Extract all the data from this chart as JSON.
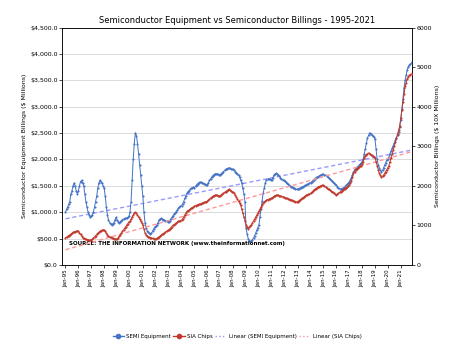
{
  "title": "Semiconductor Equipment vs Semiconductor Billings - 1995-2021",
  "ylabel_left": "Semiconductor Equipment Billings ($ Millions)",
  "ylabel_right": "Semiconductor Billings ($ 10X Millions)",
  "source_text": "SOURCE: THE INFORMATION NETWORK (www.theinformationnet.com)",
  "semi_equip_color": "#4472C4",
  "sia_chips_color": "#C0392B",
  "linear_equip_color": "#9999FF",
  "linear_sia_color": "#FF9999",
  "background_color": "#FFFFFF",
  "semi_eq_annual": [
    [
      1000,
      1050,
      1100,
      1150,
      1200,
      1350,
      1400,
      1500,
      1550,
      1500,
      1400,
      1350
    ],
    [
      1400,
      1500,
      1580,
      1600,
      1550,
      1500,
      1350,
      1200,
      1100,
      1000,
      950,
      900
    ],
    [
      920,
      950,
      1000,
      1100,
      1200,
      1300,
      1450,
      1550,
      1600,
      1580,
      1550,
      1500
    ],
    [
      1450,
      1300,
      1100,
      950,
      850,
      800,
      780,
      760,
      780,
      800,
      850,
      900
    ],
    [
      850,
      820,
      800,
      820,
      840,
      860,
      870,
      880,
      880,
      890,
      900,
      920
    ],
    [
      1000,
      1200,
      1600,
      2000,
      2300,
      2500,
      2450,
      2300,
      2100,
      1900,
      1700,
      1500
    ],
    [
      1300,
      1000,
      800,
      700,
      650,
      620,
      600,
      590,
      600,
      640,
      680,
      720
    ],
    [
      730,
      760,
      800,
      850,
      870,
      880,
      870,
      860,
      850,
      840,
      830,
      820
    ],
    [
      820,
      840,
      870,
      900,
      930,
      960,
      990,
      1010,
      1040,
      1070,
      1090,
      1110
    ],
    [
      1120,
      1160,
      1200,
      1260,
      1310,
      1360,
      1390,
      1410,
      1430,
      1450,
      1460,
      1470
    ],
    [
      1460,
      1490,
      1520,
      1540,
      1560,
      1570,
      1565,
      1555,
      1545,
      1535,
      1525,
      1515
    ],
    [
      1520,
      1560,
      1600,
      1630,
      1660,
      1690,
      1710,
      1725,
      1730,
      1725,
      1715,
      1705
    ],
    [
      1710,
      1730,
      1750,
      1770,
      1790,
      1810,
      1820,
      1830,
      1835,
      1830,
      1820,
      1810
    ],
    [
      1810,
      1790,
      1770,
      1750,
      1730,
      1710,
      1660,
      1610,
      1550,
      1450,
      1350,
      1200
    ],
    [
      700,
      590,
      500,
      455,
      445,
      450,
      480,
      510,
      555,
      605,
      655,
      705
    ],
    [
      760,
      910,
      1060,
      1220,
      1370,
      1460,
      1560,
      1610,
      1625,
      1635,
      1625,
      1605
    ],
    [
      1605,
      1655,
      1705,
      1725,
      1735,
      1725,
      1705,
      1685,
      1655,
      1635,
      1615,
      1605
    ],
    [
      1585,
      1565,
      1545,
      1525,
      1505,
      1495,
      1485,
      1475,
      1465,
      1455,
      1445,
      1435
    ],
    [
      1435,
      1445,
      1455,
      1465,
      1475,
      1485,
      1495,
      1505,
      1515,
      1525,
      1535,
      1545
    ],
    [
      1555,
      1575,
      1595,
      1615,
      1635,
      1655,
      1665,
      1675,
      1685,
      1695,
      1705,
      1715
    ],
    [
      1715,
      1705,
      1695,
      1685,
      1665,
      1645,
      1625,
      1605,
      1585,
      1565,
      1545,
      1525
    ],
    [
      1505,
      1485,
      1465,
      1445,
      1435,
      1445,
      1455,
      1465,
      1485,
      1505,
      1525,
      1545
    ],
    [
      1565,
      1605,
      1655,
      1705,
      1755,
      1805,
      1825,
      1845,
      1865,
      1885,
      1905,
      1925
    ],
    [
      1955,
      2005,
      2105,
      2205,
      2305,
      2405,
      2455,
      2505,
      2485,
      2465,
      2445,
      2425
    ],
    [
      2380,
      2200,
      2000,
      1900,
      1840,
      1790,
      1770,
      1790,
      1840,
      1890,
      1940,
      1990
    ],
    [
      2000,
      2050,
      2110,
      2160,
      2210,
      2260,
      2310,
      2360,
      2410,
      2460,
      2510,
      2620
    ],
    [
      2750,
      2950,
      3150,
      3350,
      3500,
      3600,
      3700,
      3760,
      3790,
      3810,
      3830,
      3860
    ]
  ],
  "sia_annual": [
    [
      680,
      700,
      720,
      740,
      760,
      780,
      800,
      820,
      830,
      840,
      850,
      860
    ],
    [
      850,
      810,
      770,
      730,
      690,
      670,
      660,
      650,
      640,
      630,
      625,
      620
    ],
    [
      630,
      650,
      680,
      710,
      740,
      770,
      800,
      820,
      845,
      865,
      875,
      885
    ],
    [
      875,
      845,
      805,
      765,
      725,
      705,
      695,
      685,
      675,
      665,
      655,
      645
    ],
    [
      655,
      685,
      725,
      765,
      805,
      845,
      885,
      925,
      965,
      1005,
      1045,
      1085
    ],
    [
      1100,
      1155,
      1210,
      1260,
      1310,
      1330,
      1310,
      1260,
      1210,
      1160,
      1110,
      1060
    ],
    [
      1010,
      910,
      810,
      760,
      730,
      710,
      700,
      690,
      680,
      670,
      660,
      650
    ],
    [
      650,
      670,
      690,
      710,
      730,
      750,
      770,
      790,
      810,
      830,
      850,
      870
    ],
    [
      880,
      910,
      940,
      970,
      1000,
      1020,
      1040,
      1060,
      1080,
      1100,
      1110,
      1120
    ],
    [
      1130,
      1160,
      1210,
      1260,
      1310,
      1350,
      1370,
      1390,
      1410,
      1430,
      1450,
      1465
    ],
    [
      1480,
      1500,
      1510,
      1520,
      1530,
      1540,
      1550,
      1560,
      1570,
      1580,
      1590,
      1600
    ],
    [
      1610,
      1630,
      1660,
      1690,
      1710,
      1730,
      1750,
      1760,
      1770,
      1760,
      1750,
      1740
    ],
    [
      1750,
      1770,
      1790,
      1810,
      1830,
      1850,
      1870,
      1890,
      1910,
      1890,
      1870,
      1850
    ],
    [
      1830,
      1810,
      1760,
      1710,
      1660,
      1610,
      1560,
      1510,
      1410,
      1310,
      1210,
      1110
    ],
    [
      1010,
      960,
      910,
      960,
      990,
      1010,
      1060,
      1110,
      1160,
      1210,
      1260,
      1310
    ],
    [
      1360,
      1410,
      1460,
      1510,
      1560,
      1590,
      1610,
      1630,
      1650,
      1660,
      1670,
      1680
    ],
    [
      1690,
      1710,
      1730,
      1750,
      1760,
      1770,
      1760,
      1750,
      1740,
      1730,
      1720,
      1710
    ],
    [
      1700,
      1690,
      1680,
      1670,
      1660,
      1650,
      1640,
      1630,
      1620,
      1610,
      1600,
      1590
    ],
    [
      1600,
      1620,
      1640,
      1660,
      1680,
      1700,
      1720,
      1740,
      1760,
      1770,
      1780,
      1790
    ],
    [
      1810,
      1830,
      1860,
      1890,
      1910,
      1930,
      1950,
      1970,
      1980,
      1990,
      2000,
      2010
    ],
    [
      2010,
      1990,
      1970,
      1950,
      1930,
      1910,
      1890,
      1870,
      1850,
      1830,
      1810,
      1790
    ],
    [
      1770,
      1790,
      1810,
      1830,
      1850,
      1870,
      1890,
      1910,
      1930,
      1950,
      1970,
      1990
    ],
    [
      2010,
      2060,
      2110,
      2210,
      2310,
      2360,
      2410,
      2430,
      2450,
      2470,
      2490,
      2510
    ],
    [
      2560,
      2610,
      2710,
      2760,
      2790,
      2810,
      2830,
      2810,
      2790,
      2770,
      2750,
      2730
    ],
    [
      2710,
      2610,
      2510,
      2410,
      2310,
      2260,
      2210,
      2240,
      2270,
      2310,
      2360,
      2410
    ],
    [
      2460,
      2510,
      2610,
      2710,
      2810,
      2910,
      3010,
      3110,
      3210,
      3310,
      3410,
      3510
    ],
    [
      3710,
      3910,
      4110,
      4310,
      4510,
      4610,
      4710,
      4760,
      4790,
      4810,
      4830,
      4860
    ]
  ],
  "yticks_left": [
    0,
    500,
    1000,
    1500,
    2000,
    2500,
    3000,
    3500,
    4000,
    4500
  ],
  "ytick_labels_left": [
    "$0.0",
    "$500.0",
    "$1,000.0",
    "$1,500.0",
    "$2,000.0",
    "$2,500.0",
    "$3,000.0",
    "$3,500.0",
    "$4,000.0",
    "$4,500.0"
  ],
  "yticks_right": [
    0,
    1000,
    2000,
    3000,
    4000,
    5000,
    6000
  ],
  "ytick_labels_right": [
    "0",
    "1000",
    "2000",
    "3000",
    "4000",
    "5000",
    "6000"
  ]
}
